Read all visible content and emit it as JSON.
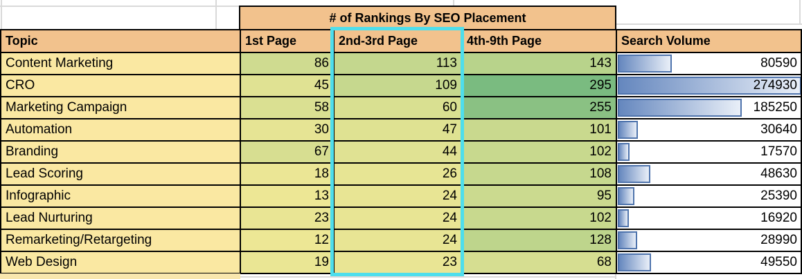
{
  "title": "# of Rankings By SEO Placement",
  "columns": [
    "Topic",
    "1st Page",
    "2nd-3rd Page",
    "4th-9th Page",
    "Search Volume"
  ],
  "rows": [
    {
      "topic": "Content Marketing",
      "p1": 86,
      "p23": 113,
      "p49": 143,
      "volume": 80590
    },
    {
      "topic": "CRO",
      "p1": 45,
      "p23": 109,
      "p49": 295,
      "volume": 274930
    },
    {
      "topic": "Marketing Campaign",
      "p1": 58,
      "p23": 60,
      "p49": 255,
      "volume": 185250
    },
    {
      "topic": "Automation",
      "p1": 30,
      "p23": 47,
      "p49": 101,
      "volume": 30640
    },
    {
      "topic": "Branding",
      "p1": 67,
      "p23": 44,
      "p49": 102,
      "volume": 17570
    },
    {
      "topic": "Lead Scoring",
      "p1": 18,
      "p23": 26,
      "p49": 108,
      "volume": 48630
    },
    {
      "topic": "Infographic",
      "p1": 13,
      "p23": 24,
      "p49": 95,
      "volume": 25390
    },
    {
      "topic": "Lead Nurturing",
      "p1": 23,
      "p23": 24,
      "p49": 102,
      "volume": 16920
    },
    {
      "topic": "Remarketing/Retargeting",
      "p1": 12,
      "p23": 24,
      "p49": 128,
      "volume": 28990
    },
    {
      "topic": "Web Design",
      "p1": 19,
      "p23": 23,
      "p49": 68,
      "volume": 49550
    }
  ],
  "selection": {
    "selected_column": "2nd-3rd Page"
  },
  "colors": {
    "header_bg": "#F2C28D",
    "topic_bg": "#FAE8A2",
    "scale_low": "#EDE795",
    "scale_high": "#7ABB80",
    "bar_start": "#6587BE",
    "bar_end": "#E9EFF8",
    "bar_border": "#4E73AC",
    "selection": "#4EDEEC",
    "partial_row_bg": "#F9E7AE",
    "gridline": "#D9D9D9"
  }
}
